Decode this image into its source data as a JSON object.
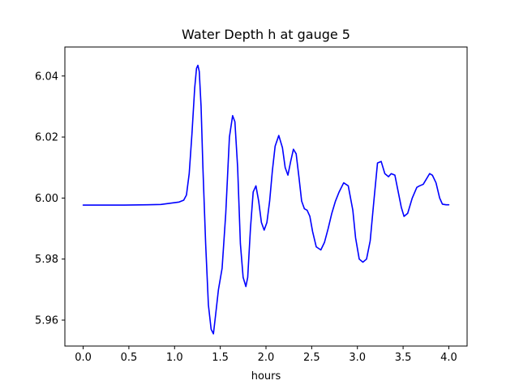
{
  "chart_data": {
    "type": "line",
    "title": "Water Depth h at gauge 5",
    "xlabel": "hours",
    "ylabel": "",
    "xlim": [
      -0.2,
      4.2
    ],
    "ylim": [
      5.9515,
      6.0495
    ],
    "xticks": [
      0.0,
      0.5,
      1.0,
      1.5,
      2.0,
      2.5,
      3.0,
      3.5,
      4.0
    ],
    "xtick_labels": [
      "0.0",
      "0.5",
      "1.0",
      "1.5",
      "2.0",
      "2.5",
      "3.0",
      "3.5",
      "4.0"
    ],
    "yticks": [
      5.96,
      5.98,
      6.0,
      6.02,
      6.04
    ],
    "ytick_labels": [
      "5.96",
      "5.98",
      "6.00",
      "6.02",
      "6.04"
    ],
    "grid": false,
    "legend": "none",
    "series": [
      {
        "color": "#0000ff",
        "x": [
          0.0,
          0.2,
          0.45,
          0.7,
          0.85,
          0.95,
          1.05,
          1.1,
          1.13,
          1.16,
          1.19,
          1.22,
          1.24,
          1.255,
          1.27,
          1.29,
          1.31,
          1.34,
          1.37,
          1.4,
          1.425,
          1.45,
          1.48,
          1.52,
          1.56,
          1.6,
          1.635,
          1.66,
          1.69,
          1.72,
          1.75,
          1.78,
          1.8,
          1.83,
          1.86,
          1.89,
          1.92,
          1.95,
          1.98,
          2.01,
          2.04,
          2.07,
          2.1,
          2.14,
          2.18,
          2.21,
          2.24,
          2.27,
          2.3,
          2.33,
          2.36,
          2.39,
          2.42,
          2.45,
          2.48,
          2.51,
          2.55,
          2.6,
          2.64,
          2.68,
          2.72,
          2.76,
          2.8,
          2.85,
          2.9,
          2.95,
          2.98,
          3.02,
          3.06,
          3.1,
          3.14,
          3.18,
          3.22,
          3.26,
          3.3,
          3.34,
          3.37,
          3.41,
          3.44,
          3.48,
          3.51,
          3.55,
          3.6,
          3.65,
          3.68,
          3.72,
          3.75,
          3.79,
          3.82,
          3.86,
          3.9,
          3.93,
          3.97,
          4.0
        ],
        "y": [
          5.9977,
          5.9977,
          5.9977,
          5.9978,
          5.9979,
          5.9983,
          5.9987,
          5.9993,
          6.001,
          6.008,
          6.021,
          6.036,
          6.0425,
          6.0435,
          6.0415,
          6.03,
          6.01,
          5.985,
          5.965,
          5.957,
          5.9555,
          5.962,
          5.97,
          5.977,
          5.995,
          6.02,
          6.027,
          6.025,
          6.01,
          5.985,
          5.974,
          5.971,
          5.974,
          5.99,
          6.002,
          6.004,
          5.999,
          5.992,
          5.9895,
          5.992,
          5.999,
          6.009,
          6.017,
          6.0205,
          6.0165,
          6.01,
          6.0075,
          6.012,
          6.016,
          6.0145,
          6.007,
          5.999,
          5.9965,
          5.996,
          5.994,
          5.989,
          5.984,
          5.983,
          5.9855,
          5.99,
          5.995,
          5.999,
          6.002,
          6.005,
          6.004,
          5.996,
          5.987,
          5.98,
          5.979,
          5.98,
          5.986,
          5.999,
          6.0115,
          6.012,
          6.008,
          6.007,
          6.008,
          6.0075,
          6.003,
          5.997,
          5.994,
          5.995,
          6.0,
          6.0035,
          6.004,
          6.0045,
          6.006,
          6.008,
          6.0075,
          6.005,
          6.0,
          5.998,
          5.9978,
          5.9978
        ]
      }
    ]
  }
}
